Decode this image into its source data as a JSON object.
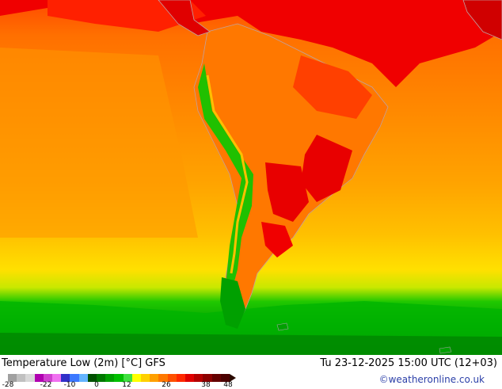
{
  "title": "Temperature Low (2m) [°C] GFS",
  "datetime": "Tu 23-12-2025 15:00 UTC (12+03)",
  "credit": "©weatheronline.co.uk",
  "legend": {
    "ticks": [
      "-28",
      "-22",
      "-10",
      "0",
      "12",
      "26",
      "38",
      "48"
    ],
    "colors": [
      "#a0a0a0",
      "#c0c0c0",
      "#d8d8d8",
      "#b000b0",
      "#d040d0",
      "#f070f0",
      "#3030c8",
      "#3c78ff",
      "#64b4ff",
      "#005000",
      "#007800",
      "#00a000",
      "#00c000",
      "#40e040",
      "#ffff00",
      "#ffd000",
      "#ffa000",
      "#ff7800",
      "#ff5000",
      "#ff2800",
      "#e00000",
      "#b40000",
      "#8c0000",
      "#640000",
      "#4a0000"
    ]
  }
}
